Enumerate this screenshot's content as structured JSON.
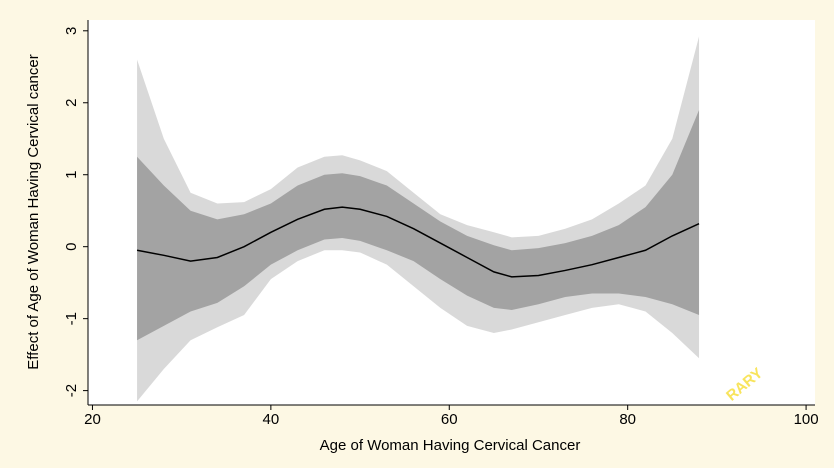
{
  "chart_data": {
    "type": "line",
    "xlabel": "Age of Woman Having Cervical Cancer",
    "ylabel": "Effect of Age of Woman Having Cervical cancer",
    "watermark": "RARY",
    "x": [
      25,
      28,
      31,
      34,
      37,
      40,
      43,
      46,
      48,
      50,
      53,
      56,
      59,
      62,
      65,
      67,
      70,
      73,
      76,
      79,
      82,
      85,
      88
    ],
    "values": [
      -0.05,
      -0.12,
      -0.2,
      -0.15,
      0.0,
      0.2,
      0.38,
      0.52,
      0.55,
      0.52,
      0.42,
      0.25,
      0.05,
      -0.15,
      -0.35,
      -0.42,
      -0.4,
      -0.33,
      -0.25,
      -0.15,
      -0.05,
      0.15,
      0.32
    ],
    "color": "#000000",
    "bands": [
      {
        "color": "#d9d9d9",
        "upper": [
          2.6,
          1.5,
          0.75,
          0.6,
          0.62,
          0.8,
          1.1,
          1.25,
          1.27,
          1.2,
          1.05,
          0.75,
          0.45,
          0.3,
          0.2,
          0.13,
          0.15,
          0.25,
          0.38,
          0.6,
          0.85,
          1.5,
          2.92
        ],
        "lower": [
          -2.15,
          -1.7,
          -1.3,
          -1.12,
          -0.95,
          -0.45,
          -0.2,
          -0.05,
          -0.05,
          -0.08,
          -0.25,
          -0.55,
          -0.85,
          -1.1,
          -1.2,
          -1.15,
          -1.05,
          -0.95,
          -0.85,
          -0.8,
          -0.9,
          -1.2,
          -1.55
        ]
      },
      {
        "color": "#a3a3a3",
        "upper": [
          1.25,
          0.85,
          0.5,
          0.38,
          0.45,
          0.6,
          0.85,
          1.0,
          1.02,
          0.98,
          0.85,
          0.6,
          0.35,
          0.15,
          0.02,
          -0.05,
          -0.02,
          0.05,
          0.15,
          0.3,
          0.55,
          1.0,
          1.9
        ],
        "lower": [
          -1.3,
          -1.1,
          -0.9,
          -0.78,
          -0.55,
          -0.25,
          -0.05,
          0.1,
          0.12,
          0.08,
          -0.05,
          -0.2,
          -0.45,
          -0.68,
          -0.85,
          -0.88,
          -0.8,
          -0.7,
          -0.65,
          -0.65,
          -0.7,
          -0.8,
          -0.95
        ]
      }
    ],
    "xlim": [
      19.5,
      101
    ],
    "ylim": [
      -2.2,
      3.15
    ],
    "xticks": [
      20,
      40,
      60,
      80,
      100
    ],
    "yticks": [
      -2,
      -1,
      0,
      1,
      2,
      3
    ],
    "grid": false
  }
}
